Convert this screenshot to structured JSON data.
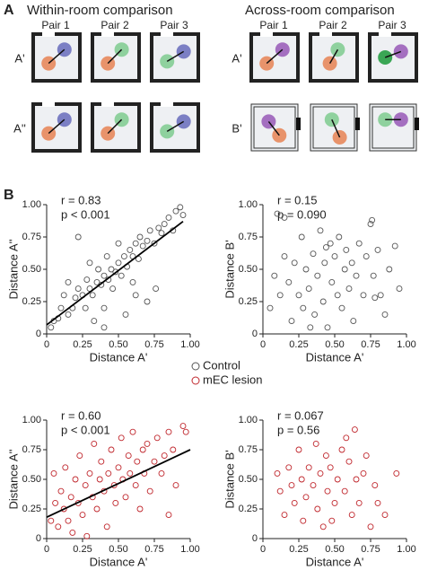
{
  "panel_labels": [
    "A",
    "B"
  ],
  "panel_a": {
    "left": {
      "title": "Within-room comparison",
      "pairs": [
        "Pair 1",
        "Pair 2",
        "Pair 3"
      ],
      "rows": [
        "A'",
        "A''"
      ]
    },
    "right": {
      "title": "Across-room comparison",
      "pairs": [
        "Pair 1",
        "Pair 2",
        "Pair 3"
      ],
      "rows": [
        "A'",
        "B'"
      ]
    }
  },
  "legend": [
    {
      "name": "Control",
      "color": "#555555"
    },
    {
      "name": "mEC lesion",
      "color": "#c0272d"
    }
  ],
  "chart_data": [
    {
      "type": "scatter",
      "xlabel": "Distance A'",
      "ylabel": "Distance A''",
      "annotations": [
        "r = 0.83",
        "p < 0.001"
      ],
      "xlim": [
        0,
        1
      ],
      "ylim": [
        0,
        1
      ],
      "xticks": [
        0,
        0.25,
        {
          "value": 0.5,
          "label": "0.50"
        },
        0.75,
        {
          "value": 1,
          "label": "1.00"
        }
      ],
      "yticks": [
        0,
        0.25,
        {
          "value": 0.5,
          "label": "0.50"
        },
        0.75,
        {
          "value": 1,
          "label": "1.00"
        }
      ],
      "series": [
        {
          "color": "#555555",
          "x": [
            0.03,
            0.05,
            0.08,
            0.1,
            0.12,
            0.15,
            0.15,
            0.18,
            0.2,
            0.22,
            0.22,
            0.25,
            0.27,
            0.28,
            0.3,
            0.3,
            0.32,
            0.33,
            0.35,
            0.36,
            0.38,
            0.4,
            0.4,
            0.42,
            0.43,
            0.45,
            0.46,
            0.48,
            0.5,
            0.5,
            0.52,
            0.54,
            0.55,
            0.56,
            0.58,
            0.6,
            0.6,
            0.62,
            0.64,
            0.65,
            0.67,
            0.7,
            0.7,
            0.72,
            0.75,
            0.76,
            0.78,
            0.8,
            0.82,
            0.85,
            0.88,
            0.9,
            0.93,
            0.95,
            0.4,
            0.62
          ],
          "values": [
            0.05,
            0.1,
            0.12,
            0.2,
            0.3,
            0.15,
            0.4,
            0.2,
            0.28,
            0.35,
            0.75,
            0.3,
            0.2,
            0.42,
            0.35,
            0.55,
            0.3,
            0.1,
            0.4,
            0.5,
            0.38,
            0.45,
            0.2,
            0.6,
            0.42,
            0.5,
            0.35,
            0.48,
            0.55,
            0.7,
            0.45,
            0.6,
            0.15,
            0.52,
            0.65,
            0.6,
            0.4,
            0.7,
            0.58,
            0.75,
            0.68,
            0.72,
            0.25,
            0.8,
            0.7,
            0.35,
            0.82,
            0.78,
            0.85,
            0.9,
            0.8,
            0.95,
            0.98,
            0.92,
            0.05,
            0.3
          ]
        }
      ],
      "fit": {
        "x": [
          0,
          0.95
        ],
        "values": [
          0.07,
          0.87
        ]
      }
    },
    {
      "type": "scatter",
      "xlabel": "Distance A'",
      "ylabel": "Distance B'",
      "annotations": [
        "r = 0.15",
        "p = 0.090"
      ],
      "xlim": [
        0,
        1
      ],
      "ylim": [
        0,
        1
      ],
      "xticks": [
        0,
        0.25,
        {
          "value": 0.5,
          "label": "0.50"
        },
        0.75,
        {
          "value": 1,
          "label": "1.00"
        }
      ],
      "yticks": [
        0,
        0.25,
        {
          "value": 0.5,
          "label": "0.50"
        },
        0.75,
        {
          "value": 1,
          "label": "1.00"
        }
      ],
      "series": [
        {
          "color": "#555555",
          "x": [
            0.05,
            0.08,
            0.1,
            0.12,
            0.15,
            0.15,
            0.18,
            0.2,
            0.22,
            0.25,
            0.27,
            0.28,
            0.3,
            0.32,
            0.35,
            0.36,
            0.38,
            0.4,
            0.42,
            0.43,
            0.45,
            0.47,
            0.48,
            0.5,
            0.52,
            0.53,
            0.55,
            0.57,
            0.58,
            0.6,
            0.62,
            0.63,
            0.65,
            0.67,
            0.7,
            0.72,
            0.75,
            0.77,
            0.78,
            0.8,
            0.82,
            0.85,
            0.88,
            0.92,
            0.95,
            0.76,
            0.44,
            0.33
          ],
          "values": [
            0.2,
            0.45,
            0.93,
            0.3,
            0.6,
            0.9,
            0.4,
            0.1,
            0.55,
            0.3,
            0.75,
            0.2,
            0.5,
            0.35,
            0.62,
            0.15,
            0.45,
            0.8,
            0.25,
            0.55,
            0.05,
            0.7,
            0.4,
            0.6,
            0.3,
            0.75,
            0.2,
            0.5,
            0.65,
            0.35,
            0.55,
            0.1,
            0.45,
            0.7,
            0.3,
            0.6,
            0.85,
            0.45,
            0.28,
            0.65,
            0.3,
            0.15,
            0.5,
            0.68,
            0.35,
            0.88,
            0.67,
            0.05
          ]
        }
      ]
    },
    {
      "type": "scatter",
      "xlabel": "Distance A'",
      "ylabel": "Distance A''",
      "annotations": [
        "r = 0.60",
        "p < 0.001"
      ],
      "xlim": [
        0,
        1
      ],
      "ylim": [
        0,
        1
      ],
      "xticks": [
        0,
        0.25,
        {
          "value": 0.5,
          "label": "0.50"
        },
        0.75,
        {
          "value": 1,
          "label": "1.00"
        }
      ],
      "yticks": [
        0,
        0.25,
        {
          "value": 0.5,
          "label": "0.50"
        },
        0.75,
        {
          "value": 1,
          "label": "1.00"
        }
      ],
      "series": [
        {
          "color": "#c0272d",
          "x": [
            0.03,
            0.05,
            0.06,
            0.08,
            0.1,
            0.12,
            0.13,
            0.15,
            0.17,
            0.18,
            0.2,
            0.22,
            0.23,
            0.25,
            0.27,
            0.28,
            0.3,
            0.32,
            0.33,
            0.35,
            0.37,
            0.38,
            0.4,
            0.42,
            0.43,
            0.45,
            0.47,
            0.48,
            0.5,
            0.52,
            0.53,
            0.55,
            0.57,
            0.58,
            0.6,
            0.62,
            0.63,
            0.65,
            0.67,
            0.68,
            0.7,
            0.72,
            0.75,
            0.77,
            0.8,
            0.82,
            0.85,
            0.88,
            0.9,
            0.95,
            0.97,
            0.85
          ],
          "values": [
            0.15,
            0.55,
            0.3,
            0.1,
            0.4,
            0.25,
            0.6,
            0.15,
            0.35,
            0.05,
            0.5,
            0.3,
            0.7,
            0.2,
            0.45,
            0.02,
            0.55,
            0.35,
            0.8,
            0.25,
            0.5,
            0.65,
            0.4,
            0.1,
            0.55,
            0.75,
            0.45,
            0.3,
            0.6,
            0.85,
            0.5,
            0.35,
            0.7,
            0.55,
            0.9,
            0.45,
            0.65,
            0.25,
            0.75,
            0.55,
            0.8,
            0.4,
            0.65,
            0.85,
            0.55,
            0.7,
            0.2,
            0.75,
            0.45,
            0.95,
            0.9,
            0.9
          ]
        }
      ],
      "fit": {
        "x": [
          0,
          1
        ],
        "values": [
          0.18,
          0.75
        ]
      }
    },
    {
      "type": "scatter",
      "xlabel": "Distance A'",
      "ylabel": "Distance B'",
      "annotations": [
        "r = 0.067",
        "p = 0.56"
      ],
      "xlim": [
        0,
        1
      ],
      "ylim": [
        0,
        1
      ],
      "xticks": [
        0,
        0.25,
        {
          "value": 0.5,
          "label": "0.50"
        },
        0.75,
        {
          "value": 1,
          "label": "1.00"
        }
      ],
      "yticks": [
        0,
        0.25,
        {
          "value": 0.5,
          "label": "0.50"
        },
        0.75,
        {
          "value": 1,
          "label": "1.00"
        }
      ],
      "series": [
        {
          "color": "#c0272d",
          "x": [
            0.1,
            0.12,
            0.15,
            0.18,
            0.2,
            0.22,
            0.25,
            0.27,
            0.28,
            0.3,
            0.32,
            0.35,
            0.37,
            0.38,
            0.4,
            0.42,
            0.44,
            0.45,
            0.47,
            0.5,
            0.52,
            0.55,
            0.57,
            0.6,
            0.62,
            0.64,
            0.65,
            0.67,
            0.7,
            0.72,
            0.75,
            0.78,
            0.8,
            0.85,
            0.93,
            0.58,
            0.48
          ],
          "values": [
            0.55,
            0.4,
            0.2,
            0.6,
            0.45,
            0.3,
            0.75,
            0.5,
            0.15,
            0.35,
            0.6,
            0.45,
            0.8,
            0.25,
            0.55,
            0.1,
            0.7,
            0.4,
            0.6,
            0.3,
            0.5,
            0.75,
            0.4,
            0.65,
            0.2,
            0.92,
            0.5,
            0.3,
            0.55,
            0.7,
            0.1,
            0.45,
            0.3,
            0.2,
            0.55,
            0.85,
            0.15
          ]
        }
      ]
    }
  ]
}
